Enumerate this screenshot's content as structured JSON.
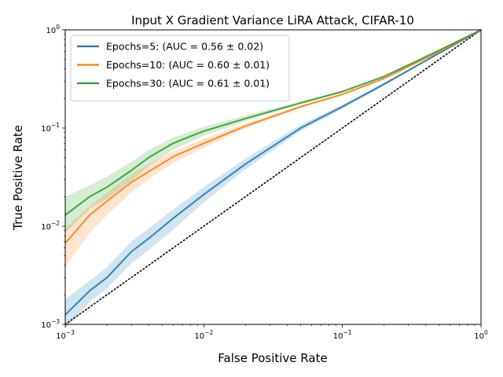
{
  "chart_data": {
    "type": "line",
    "title": "Input X Gradient Variance LiRA Attack, CIFAR-10",
    "xlabel": "False Positive Rate",
    "ylabel": "True Positive Rate",
    "xscale": "log",
    "yscale": "log",
    "xlim": [
      0.001,
      1
    ],
    "ylim": [
      0.001,
      1
    ],
    "xticks": [
      {
        "value": 0.001,
        "base": "10",
        "exp": "−3"
      },
      {
        "value": 0.01,
        "base": "10",
        "exp": "−2"
      },
      {
        "value": 0.1,
        "base": "10",
        "exp": "−1"
      },
      {
        "value": 1,
        "base": "10",
        "exp": "0"
      }
    ],
    "yticks": [
      {
        "value": 0.001,
        "base": "10",
        "exp": "−3"
      },
      {
        "value": 0.01,
        "base": "10",
        "exp": "−2"
      },
      {
        "value": 0.1,
        "base": "10",
        "exp": "−1"
      },
      {
        "value": 1,
        "base": "10",
        "exp": "0"
      }
    ],
    "grid": false,
    "legend_position": "top-left",
    "baseline": {
      "style": "dotted",
      "color": "#000000",
      "x": [
        0.001,
        1
      ],
      "y": [
        0.001,
        1
      ]
    },
    "series": [
      {
        "name": "Epochs=5: (AUC = 0.56 ± 0.02)",
        "color": "#1f77b4",
        "x": [
          0.001,
          0.0015,
          0.002,
          0.003,
          0.004,
          0.006,
          0.01,
          0.02,
          0.05,
          0.1,
          0.2,
          0.5,
          1.0
        ],
        "y": [
          0.00125,
          0.0022,
          0.003,
          0.0055,
          0.0075,
          0.012,
          0.021,
          0.043,
          0.1,
          0.165,
          0.28,
          0.58,
          1.0
        ],
        "lower": [
          0.0009,
          0.0017,
          0.0023,
          0.0042,
          0.0057,
          0.0092,
          0.0175,
          0.038,
          0.093,
          0.157,
          0.27,
          0.57,
          1.0
        ],
        "upper": [
          0.0018,
          0.0028,
          0.0038,
          0.007,
          0.0095,
          0.0148,
          0.025,
          0.049,
          0.108,
          0.173,
          0.29,
          0.59,
          1.0
        ]
      },
      {
        "name": "Epochs=10: (AUC = 0.60 ± 0.01)",
        "color": "#ff7f0e",
        "x": [
          0.001,
          0.0015,
          0.002,
          0.003,
          0.004,
          0.006,
          0.01,
          0.02,
          0.05,
          0.1,
          0.2,
          0.5,
          1.0
        ],
        "y": [
          0.0067,
          0.013,
          0.018,
          0.028,
          0.036,
          0.051,
          0.07,
          0.105,
          0.165,
          0.22,
          0.32,
          0.6,
          1.0
        ],
        "lower": [
          0.0038,
          0.0085,
          0.013,
          0.022,
          0.03,
          0.044,
          0.063,
          0.099,
          0.16,
          0.215,
          0.315,
          0.595,
          1.0
        ],
        "upper": [
          0.0095,
          0.016,
          0.022,
          0.034,
          0.043,
          0.058,
          0.078,
          0.112,
          0.171,
          0.226,
          0.326,
          0.606,
          1.0
        ]
      },
      {
        "name": "Epochs=30: (AUC = 0.61 ± 0.01)",
        "color": "#2ca02c",
        "x": [
          0.001,
          0.0015,
          0.002,
          0.003,
          0.004,
          0.006,
          0.01,
          0.02,
          0.05,
          0.1,
          0.2,
          0.5,
          1.0
        ],
        "y": [
          0.013,
          0.02,
          0.025,
          0.037,
          0.05,
          0.07,
          0.093,
          0.125,
          0.18,
          0.235,
          0.335,
          0.62,
          1.0
        ],
        "lower": [
          0.0085,
          0.015,
          0.019,
          0.029,
          0.041,
          0.06,
          0.083,
          0.117,
          0.175,
          0.23,
          0.33,
          0.615,
          1.0
        ],
        "upper": [
          0.02,
          0.026,
          0.032,
          0.045,
          0.06,
          0.08,
          0.103,
          0.134,
          0.186,
          0.241,
          0.341,
          0.626,
          1.0
        ]
      }
    ]
  }
}
